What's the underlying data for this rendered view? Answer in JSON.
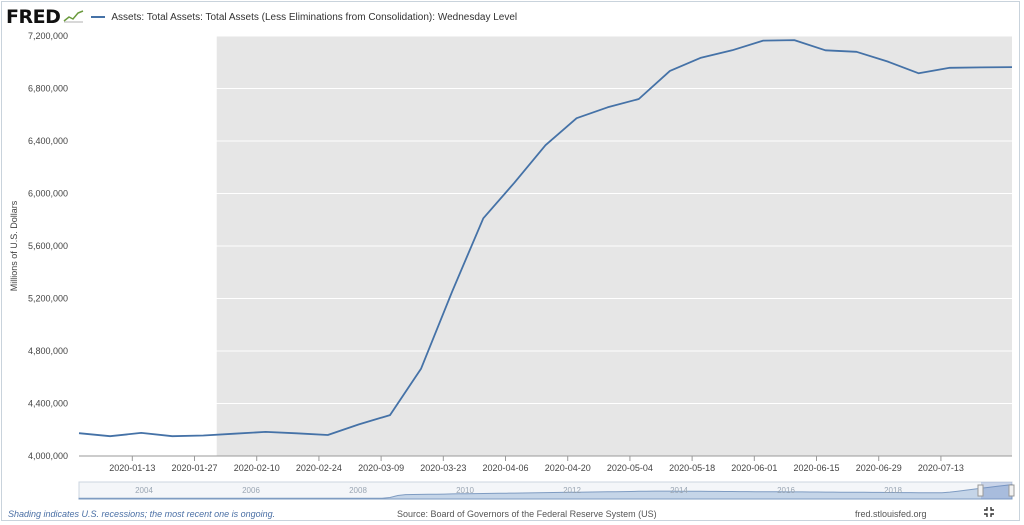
{
  "header": {
    "logo": "FRED",
    "series_title": "Assets: Total Assets: Total Assets (Less Eliminations from Consolidation): Wednesday Level"
  },
  "footer": {
    "recession_note": "Shading indicates U.S. recessions; the most recent one is ongoing.",
    "source": "Source: Board of Governors of the Federal Reserve System (US)",
    "site": "fred.stlouisfed.org"
  },
  "colors": {
    "line": "#4572a7",
    "recession_shade": "#e6e6e6",
    "navigator_fill": "#c5d5e8"
  },
  "chart_data": {
    "type": "line",
    "title": "",
    "xlabel": "",
    "ylabel": "Millions of U.S. Dollars",
    "ylim": [
      4000000,
      7200000
    ],
    "yticks": [
      4000000,
      4400000,
      4800000,
      5200000,
      5600000,
      6000000,
      6400000,
      6800000,
      7200000
    ],
    "ytick_labels": [
      "4,000,000",
      "4,400,000",
      "4,800,000",
      "5,200,000",
      "5,600,000",
      "6,000,000",
      "6,400,000",
      "6,800,000",
      "7,200,000"
    ],
    "xlim": [
      "2020-01-01",
      "2020-07-29"
    ],
    "xtick_labels": [
      "2020-01-13",
      "2020-01-27",
      "2020-02-10",
      "2020-02-24",
      "2020-03-09",
      "2020-03-23",
      "2020-04-06",
      "2020-04-20",
      "2020-05-04",
      "2020-05-18",
      "2020-06-01",
      "2020-06-15",
      "2020-06-29",
      "2020-07-13"
    ],
    "recession_shading": {
      "start": "2020-02-01",
      "end": "2020-07-29"
    },
    "grid": "horizontal",
    "series": [
      {
        "x": [
          "2020-01-01",
          "2020-01-08",
          "2020-01-15",
          "2020-01-22",
          "2020-01-29",
          "2020-02-05",
          "2020-02-12",
          "2020-02-19",
          "2020-02-26",
          "2020-03-04",
          "2020-03-11",
          "2020-03-18",
          "2020-03-25",
          "2020-04-01",
          "2020-04-08",
          "2020-04-15",
          "2020-04-22",
          "2020-04-29",
          "2020-05-06",
          "2020-05-13",
          "2020-05-20",
          "2020-05-27",
          "2020-06-03",
          "2020-06-10",
          "2020-06-17",
          "2020-06-24",
          "2020-07-01",
          "2020-07-08",
          "2020-07-15",
          "2020-07-22",
          "2020-07-29"
        ],
        "y": [
          4174000,
          4151000,
          4176000,
          4151000,
          4156000,
          4170000,
          4184000,
          4173000,
          4160000,
          4241000,
          4312000,
          4666000,
          5254000,
          5811000,
          6082000,
          6368000,
          6574000,
          6657000,
          6720000,
          6934000,
          7035000,
          7091000,
          7165000,
          7169000,
          7091000,
          7080000,
          7006000,
          6916000,
          6958000,
          6961000,
          6963000
        ]
      }
    ],
    "navigator": {
      "tick_labels": [
        "2004",
        "2006",
        "2008",
        "2010",
        "2012",
        "2014",
        "2016",
        "2018"
      ]
    }
  }
}
